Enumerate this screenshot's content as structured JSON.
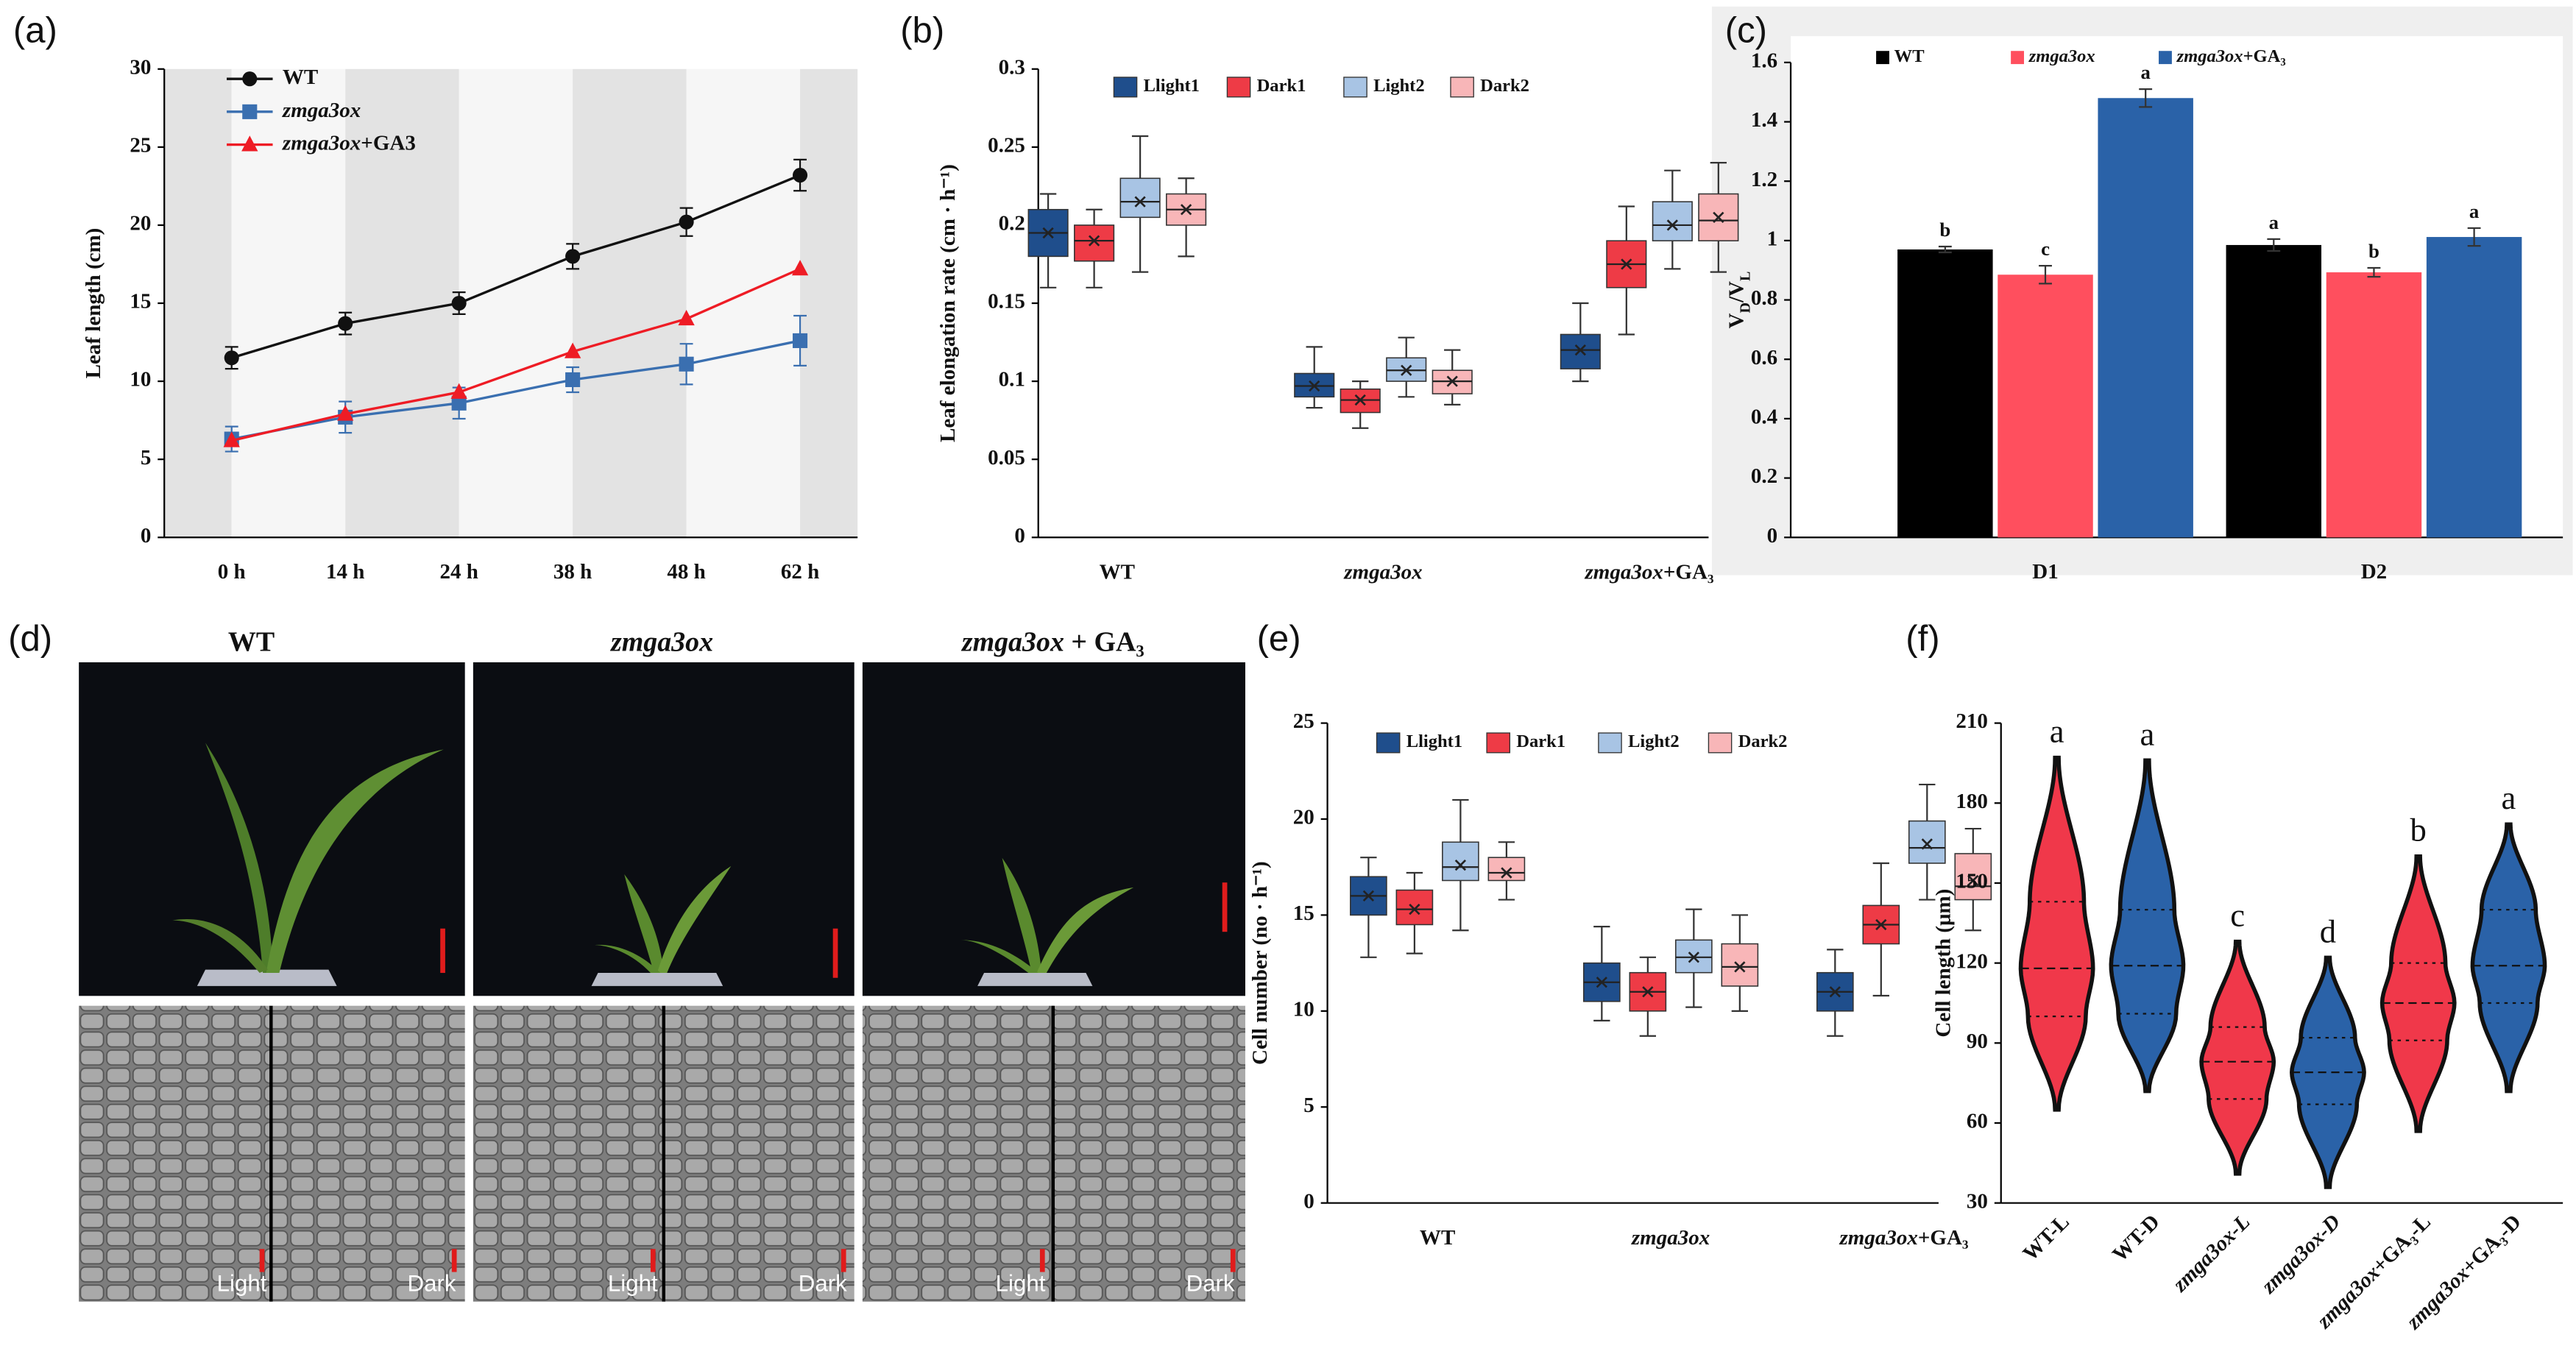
{
  "chart_data": [
    {
      "type": "line",
      "label": "(a)",
      "ylabel": "Leaf length (cm)",
      "categories": [
        "0 h",
        "14 h",
        "24 h",
        "38 h",
        "48 h",
        "62 h"
      ],
      "ylim": [
        0,
        30
      ],
      "yticks": [
        0,
        5,
        10,
        15,
        20,
        25,
        30
      ],
      "series": [
        {
          "name": "WT",
          "color": "#111111",
          "marker": "circle",
          "values": [
            11.5,
            13.7,
            15,
            18,
            20.2,
            23.2
          ],
          "errors": [
            0.7,
            0.7,
            0.7,
            0.8,
            0.9,
            1.0
          ]
        },
        {
          "name": "zmga3ox",
          "color": "#3a6fb0",
          "marker": "square",
          "values": [
            6.3,
            7.7,
            8.6,
            10.1,
            11.1,
            12.6
          ],
          "errors": [
            0.8,
            1.0,
            1.0,
            0.8,
            1.3,
            1.6
          ]
        },
        {
          "name": "zmga3ox+GA3",
          "color": "#ee1c25",
          "marker": "triangle",
          "values": [
            6.2,
            7.9,
            9.3,
            11.9,
            14.0,
            17.2
          ]
        }
      ]
    },
    {
      "type": "box",
      "label": "(b)",
      "ylabel": "Leaf elongation rate (cm · h⁻¹)",
      "categories": [
        "WT",
        "zmga3ox",
        "zmga3ox+GA₃"
      ],
      "ylim": [
        0,
        0.3
      ],
      "yticks": [
        0,
        0.05,
        0.1,
        0.15,
        0.2,
        0.25,
        0.3
      ],
      "series": [
        {
          "name": "Llight1",
          "color": "#1f4e8c",
          "values": [
            {
              "min": 0.16,
              "q1": 0.18,
              "median": 0.195,
              "q3": 0.21,
              "max": 0.22,
              "mean": 0.195
            },
            {
              "min": 0.083,
              "q1": 0.09,
              "median": 0.097,
              "q3": 0.105,
              "max": 0.122,
              "mean": 0.097
            },
            {
              "min": 0.1,
              "q1": 0.108,
              "median": 0.12,
              "q3": 0.13,
              "max": 0.15,
              "mean": 0.12
            }
          ]
        },
        {
          "name": "Dark1",
          "color": "#ee3b46",
          "values": [
            {
              "min": 0.16,
              "q1": 0.177,
              "median": 0.19,
              "q3": 0.2,
              "max": 0.21,
              "mean": 0.19
            },
            {
              "min": 0.07,
              "q1": 0.08,
              "median": 0.088,
              "q3": 0.095,
              "max": 0.1,
              "mean": 0.088
            },
            {
              "min": 0.13,
              "q1": 0.16,
              "median": 0.175,
              "q3": 0.19,
              "max": 0.212,
              "mean": 0.175
            }
          ]
        },
        {
          "name": "Light2",
          "color": "#a8c4e4",
          "values": [
            {
              "min": 0.17,
              "q1": 0.205,
              "median": 0.215,
              "q3": 0.23,
              "max": 0.257,
              "mean": 0.215
            },
            {
              "min": 0.09,
              "q1": 0.1,
              "median": 0.107,
              "q3": 0.115,
              "max": 0.128,
              "mean": 0.107
            },
            {
              "min": 0.172,
              "q1": 0.19,
              "median": 0.2,
              "q3": 0.215,
              "max": 0.235,
              "mean": 0.2
            }
          ]
        },
        {
          "name": "Dark2",
          "color": "#f8b6b8",
          "values": [
            {
              "min": 0.18,
              "q1": 0.2,
              "median": 0.21,
              "q3": 0.22,
              "max": 0.23,
              "mean": 0.21
            },
            {
              "min": 0.085,
              "q1": 0.092,
              "median": 0.1,
              "q3": 0.107,
              "max": 0.12,
              "mean": 0.1
            },
            {
              "min": 0.17,
              "q1": 0.19,
              "median": 0.203,
              "q3": 0.22,
              "max": 0.24,
              "mean": 0.205
            }
          ]
        }
      ]
    },
    {
      "type": "bar",
      "label": "(c)",
      "ylabel": [
        "V",
        "D",
        "/V",
        "L"
      ],
      "categories": [
        "D1",
        "D2"
      ],
      "ylim": [
        0,
        1.6
      ],
      "yticks": [
        0,
        0.2,
        0.4,
        0.6,
        0.8,
        1,
        1.2,
        1.4,
        1.6
      ],
      "series": [
        {
          "name": "WT",
          "color": "#000000",
          "values": [
            0.97,
            0.985
          ],
          "errors": [
            0.01,
            0.02
          ],
          "letters": [
            "b",
            "a"
          ]
        },
        {
          "name": "zmga3ox",
          "color": "#ff4f5e",
          "values": [
            0.885,
            0.893
          ],
          "errors": [
            0.03,
            0.015
          ],
          "letters": [
            "c",
            "b"
          ]
        },
        {
          "name": "zmga3ox+GA₃",
          "color": "#2a62a8",
          "values": [
            1.48,
            1.012
          ],
          "errors": [
            0.03,
            0.03
          ],
          "letters": [
            "a",
            "a"
          ]
        }
      ]
    },
    {
      "type": "box",
      "label": "(e)",
      "ylabel": "Cell number (no · h⁻¹)",
      "categories": [
        "WT",
        "zmga3ox",
        "zmga3ox+GA₃"
      ],
      "ylim": [
        0,
        25
      ],
      "yticks": [
        0,
        5,
        10,
        15,
        20,
        25
      ],
      "series": [
        {
          "name": "Llight1",
          "color": "#1f4e8c",
          "values": [
            {
              "min": 12.8,
              "q1": 15,
              "median": 16,
              "q3": 17,
              "max": 18,
              "mean": 16
            },
            {
              "min": 9.5,
              "q1": 10.5,
              "median": 11.5,
              "q3": 12.5,
              "max": 14.4,
              "mean": 11.5
            },
            {
              "min": 8.7,
              "q1": 10,
              "median": 11,
              "q3": 12,
              "max": 13.2,
              "mean": 11
            }
          ]
        },
        {
          "name": "Dark1",
          "color": "#ee3b46",
          "values": [
            {
              "min": 13,
              "q1": 14.5,
              "median": 15.3,
              "q3": 16.3,
              "max": 17.2,
              "mean": 15.3
            },
            {
              "min": 8.7,
              "q1": 10,
              "median": 11,
              "q3": 12,
              "max": 12.8,
              "mean": 11
            },
            {
              "min": 10.8,
              "q1": 13.5,
              "median": 14.5,
              "q3": 15.5,
              "max": 17.7,
              "mean": 14.5
            }
          ]
        },
        {
          "name": "Light2",
          "color": "#a8c4e4",
          "values": [
            {
              "min": 14.2,
              "q1": 16.8,
              "median": 17.5,
              "q3": 18.8,
              "max": 21,
              "mean": 17.6
            },
            {
              "min": 10.2,
              "q1": 12,
              "median": 12.8,
              "q3": 13.7,
              "max": 15.3,
              "mean": 12.8
            },
            {
              "min": 15.8,
              "q1": 17.7,
              "median": 18.5,
              "q3": 19.9,
              "max": 21.8,
              "mean": 18.7
            }
          ]
        },
        {
          "name": "Dark2",
          "color": "#f8b6b8",
          "values": [
            {
              "min": 15.8,
              "q1": 16.8,
              "median": 17.2,
              "q3": 18,
              "max": 18.8,
              "mean": 17.2
            },
            {
              "min": 10,
              "q1": 11.3,
              "median": 12.3,
              "q3": 13.5,
              "max": 15,
              "mean": 12.3
            },
            {
              "min": 14.2,
              "q1": 15.8,
              "median": 16.5,
              "q3": 18.2,
              "max": 19.5,
              "mean": 16.8
            }
          ]
        }
      ]
    },
    {
      "type": "violin",
      "label": "(f)",
      "ylabel": "Cell length (μm)",
      "categories": [
        "WT-L",
        "WT-D",
        "zmga3ox-L",
        "zmga3ox-D",
        "zmga3ox+GA₃-L",
        "zmga3ox+GA₃-D"
      ],
      "colors": [
        "#f0384a",
        "#2a62a8",
        "#f0384a",
        "#2a62a8",
        "#f0384a",
        "#2a62a8"
      ],
      "ylim": [
        30,
        210
      ],
      "yticks": [
        30,
        60,
        90,
        120,
        150,
        180,
        210
      ],
      "values": [
        {
          "min": 65,
          "q1": 100,
          "median": 118,
          "q3": 143,
          "max": 197
        },
        {
          "min": 72,
          "q1": 101,
          "median": 119,
          "q3": 140,
          "max": 196
        },
        {
          "min": 41,
          "q1": 69,
          "median": 83,
          "q3": 96,
          "max": 128
        },
        {
          "min": 36,
          "q1": 67,
          "median": 79,
          "q3": 92,
          "max": 122
        },
        {
          "min": 57,
          "q1": 91,
          "median": 105,
          "q3": 120,
          "max": 160
        },
        {
          "min": 72,
          "q1": 105,
          "median": 119,
          "q3": 140,
          "max": 172
        }
      ],
      "letters": [
        "a",
        "a",
        "c",
        "d",
        "b",
        "a"
      ]
    }
  ],
  "photos": {
    "label": "(d)",
    "columns": [
      "WT",
      "zmga3ox",
      "zmga3ox + GA₃"
    ],
    "sem_labels": [
      "Light",
      "Dark"
    ]
  }
}
